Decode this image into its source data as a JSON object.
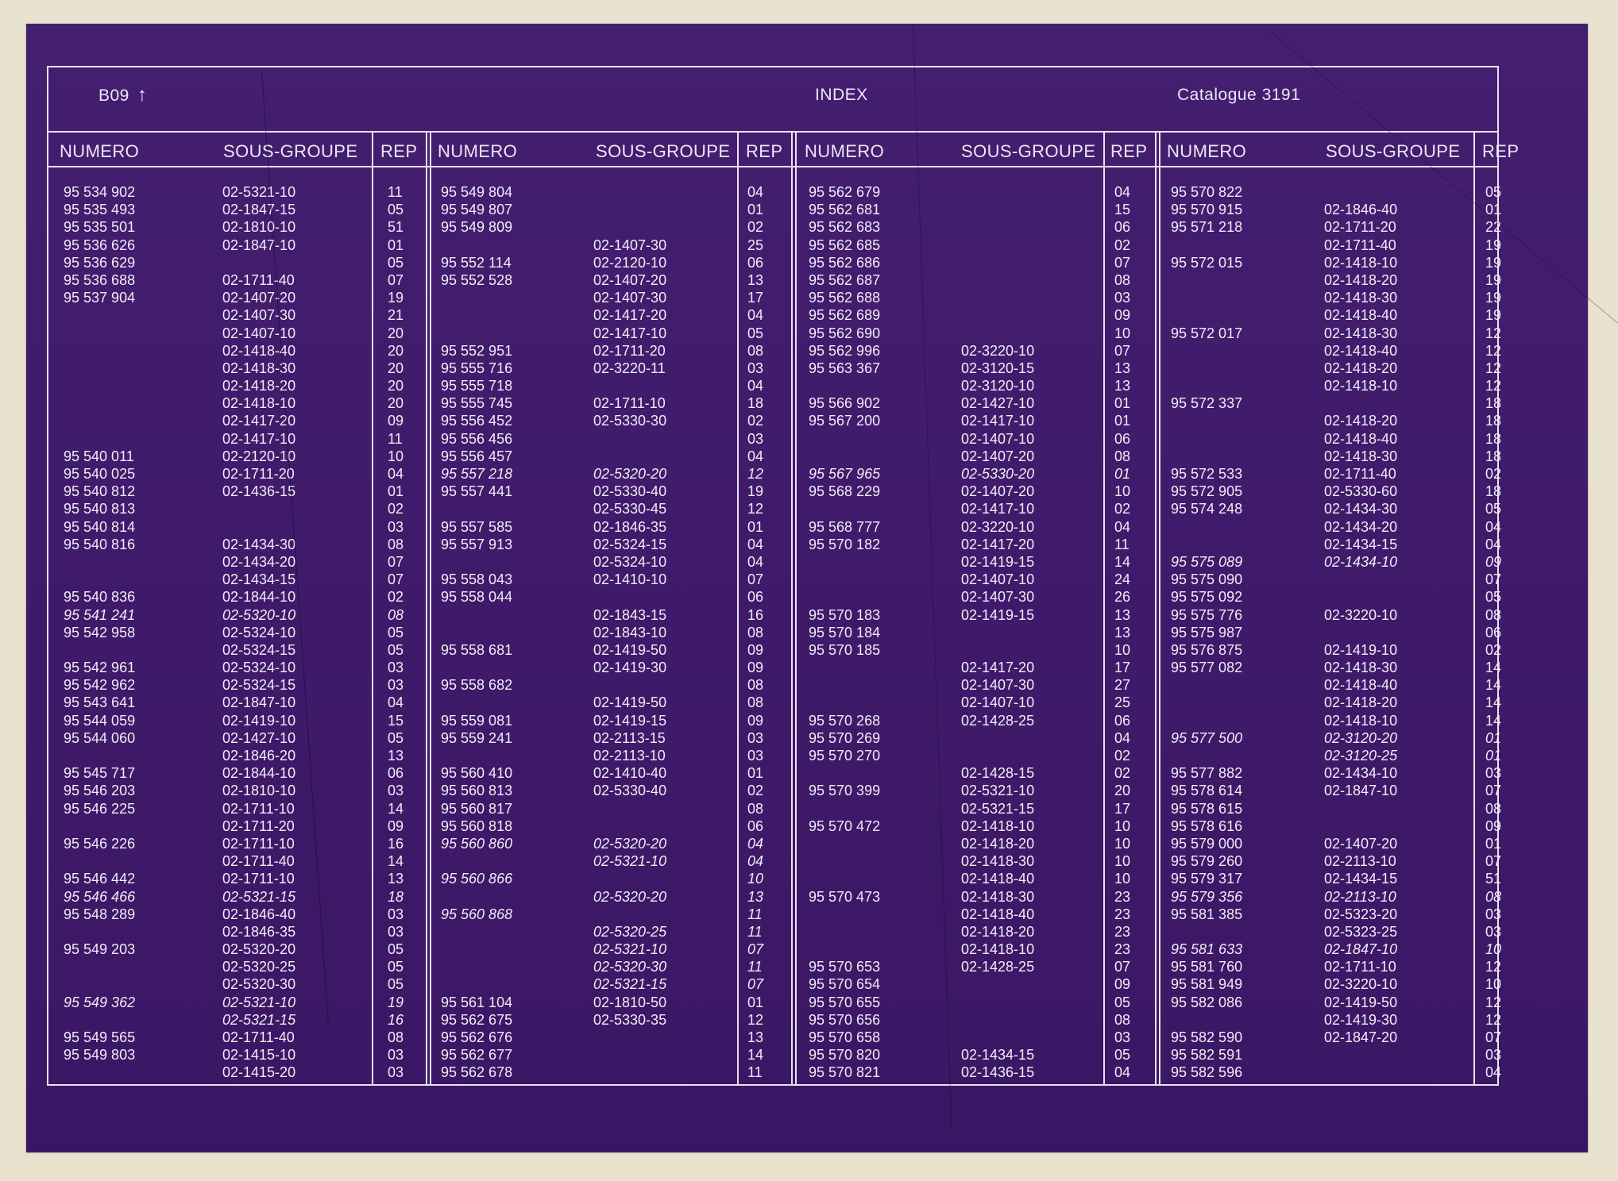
{
  "header": {
    "code": "B09",
    "arrow": "↑",
    "title": "INDEX",
    "catalogue": "Catalogue 3191"
  },
  "column_headers": {
    "numero": "NUMERO",
    "sous_groupe": "SOUS-GROUPE",
    "rep": "REP"
  },
  "colors": {
    "sheet": "#421d6d",
    "text": "#f1edf6",
    "background": "#e9e2cf"
  },
  "blocks": [
    {
      "rows": [
        [
          "95 534 902",
          "02-5321-10",
          "11",
          false
        ],
        [
          "95 535 493",
          "02-1847-15",
          "05",
          false
        ],
        [
          "95 535 501",
          "02-1810-10",
          "51",
          false
        ],
        [
          "95 536 626",
          "02-1847-10",
          "01",
          false
        ],
        [
          "95 536 629",
          "",
          "05",
          false
        ],
        [
          "95 536 688",
          "02-1711-40",
          "07",
          false
        ],
        [
          "95 537 904",
          "02-1407-20",
          "19",
          false
        ],
        [
          "",
          "02-1407-30",
          "21",
          false
        ],
        [
          "",
          "02-1407-10",
          "20",
          false
        ],
        [
          "",
          "02-1418-40",
          "20",
          false
        ],
        [
          "",
          "02-1418-30",
          "20",
          false
        ],
        [
          "",
          "02-1418-20",
          "20",
          false
        ],
        [
          "",
          "02-1418-10",
          "20",
          false
        ],
        [
          "",
          "02-1417-20",
          "09",
          false
        ],
        [
          "",
          "02-1417-10",
          "11",
          false
        ],
        [
          "95 540 011",
          "02-2120-10",
          "10",
          false
        ],
        [
          "95 540 025",
          "02-1711-20",
          "04",
          false
        ],
        [
          "95 540 812",
          "02-1436-15",
          "01",
          false
        ],
        [
          "95 540 813",
          "",
          "02",
          false
        ],
        [
          "95 540 814",
          "",
          "03",
          false
        ],
        [
          "95 540 816",
          "02-1434-30",
          "08",
          false
        ],
        [
          "",
          "02-1434-20",
          "07",
          false
        ],
        [
          "",
          "02-1434-15",
          "07",
          false
        ],
        [
          "95 540 836",
          "02-1844-10",
          "02",
          false
        ],
        [
          "95 541 241",
          "02-5320-10",
          "08",
          true
        ],
        [
          "95 542 958",
          "02-5324-10",
          "05",
          false
        ],
        [
          "",
          "02-5324-15",
          "05",
          false
        ],
        [
          "95 542 961",
          "02-5324-10",
          "03",
          false
        ],
        [
          "95 542 962",
          "02-5324-15",
          "03",
          false
        ],
        [
          "95 543 641",
          "02-1847-10",
          "04",
          false
        ],
        [
          "95 544 059",
          "02-1419-10",
          "15",
          false
        ],
        [
          "95 544 060",
          "02-1427-10",
          "05",
          false
        ],
        [
          "",
          "02-1846-20",
          "13",
          false
        ],
        [
          "95 545 717",
          "02-1844-10",
          "06",
          false
        ],
        [
          "95 546 203",
          "02-1810-10",
          "03",
          false
        ],
        [
          "95 546 225",
          "02-1711-10",
          "14",
          false
        ],
        [
          "",
          "02-1711-20",
          "09",
          false
        ],
        [
          "95 546 226",
          "02-1711-10",
          "16",
          false
        ],
        [
          "",
          "02-1711-40",
          "14",
          false
        ],
        [
          "95 546 442",
          "02-1711-10",
          "13",
          false
        ],
        [
          "95 546 466",
          "02-5321-15",
          "18",
          true
        ],
        [
          "95 548 289",
          "02-1846-40",
          "03",
          false
        ],
        [
          "",
          "02-1846-35",
          "03",
          false
        ],
        [
          "95 549 203",
          "02-5320-20",
          "05",
          false
        ],
        [
          "",
          "02-5320-25",
          "05",
          false
        ],
        [
          "",
          "02-5320-30",
          "05",
          false
        ],
        [
          "95 549 362",
          "02-5321-10",
          "19",
          true
        ],
        [
          "",
          "02-5321-15",
          "16",
          true
        ],
        [
          "95 549 565",
          "02-1711-40",
          "08",
          false
        ],
        [
          "95 549 803",
          "02-1415-10",
          "03",
          false
        ],
        [
          "",
          "02-1415-20",
          "03",
          false
        ]
      ]
    },
    {
      "rows": [
        [
          "95 549 804",
          "",
          "04",
          false
        ],
        [
          "95 549 807",
          "",
          "01",
          false
        ],
        [
          "95 549 809",
          "",
          "02",
          false
        ],
        [
          "",
          "02-1407-30",
          "25",
          false
        ],
        [
          "95 552 114",
          "02-2120-10",
          "06",
          false
        ],
        [
          "95 552 528",
          "02-1407-20",
          "13",
          false
        ],
        [
          "",
          "02-1407-30",
          "17",
          false
        ],
        [
          "",
          "02-1417-20",
          "04",
          false
        ],
        [
          "",
          "02-1417-10",
          "05",
          false
        ],
        [
          "95 552 951",
          "02-1711-20",
          "08",
          false
        ],
        [
          "95 555 716",
          "02-3220-11",
          "03",
          false
        ],
        [
          "95 555 718",
          "",
          "04",
          false
        ],
        [
          "95 555 745",
          "02-1711-10",
          "18",
          false
        ],
        [
          "95 556 452",
          "02-5330-30",
          "02",
          false
        ],
        [
          "95 556 456",
          "",
          "03",
          false
        ],
        [
          "95 556 457",
          "",
          "04",
          false
        ],
        [
          "95 557 218",
          "02-5320-20",
          "12",
          true
        ],
        [
          "95 557 441",
          "02-5330-40",
          "19",
          false
        ],
        [
          "",
          "02-5330-45",
          "12",
          false
        ],
        [
          "95 557 585",
          "02-1846-35",
          "01",
          false
        ],
        [
          "95 557 913",
          "02-5324-15",
          "04",
          false
        ],
        [
          "",
          "02-5324-10",
          "04",
          false
        ],
        [
          "95 558 043",
          "02-1410-10",
          "07",
          false
        ],
        [
          "95 558 044",
          "",
          "06",
          false
        ],
        [
          "",
          "02-1843-15",
          "16",
          false
        ],
        [
          "",
          "02-1843-10",
          "08",
          false
        ],
        [
          "95 558 681",
          "02-1419-50",
          "09",
          false
        ],
        [
          "",
          "02-1419-30",
          "09",
          false
        ],
        [
          "95 558 682",
          "",
          "08",
          false
        ],
        [
          "",
          "02-1419-50",
          "08",
          false
        ],
        [
          "95 559 081",
          "02-1419-15",
          "09",
          false
        ],
        [
          "95 559 241",
          "02-2113-15",
          "03",
          false
        ],
        [
          "",
          "02-2113-10",
          "03",
          false
        ],
        [
          "95 560 410",
          "02-1410-40",
          "01",
          false
        ],
        [
          "95 560 813",
          "02-5330-40",
          "02",
          false
        ],
        [
          "95 560 817",
          "",
          "08",
          false
        ],
        [
          "95 560 818",
          "",
          "06",
          false
        ],
        [
          "95 560 860",
          "02-5320-20",
          "04",
          true
        ],
        [
          "",
          "02-5321-10",
          "04",
          true
        ],
        [
          "95 560 866",
          "",
          "10",
          true
        ],
        [
          "",
          "02-5320-20",
          "13",
          true
        ],
        [
          "95 560 868",
          "",
          "11",
          true
        ],
        [
          "",
          "02-5320-25",
          "11",
          true
        ],
        [
          "",
          "02-5321-10",
          "07",
          true
        ],
        [
          "",
          "02-5320-30",
          "11",
          true
        ],
        [
          "",
          "02-5321-15",
          "07",
          true
        ],
        [
          "95 561 104",
          "02-1810-50",
          "01",
          false
        ],
        [
          "95 562 675",
          "02-5330-35",
          "12",
          false
        ],
        [
          "95 562 676",
          "",
          "13",
          false
        ],
        [
          "95 562 677",
          "",
          "14",
          false
        ],
        [
          "95 562 678",
          "",
          "11",
          false
        ]
      ]
    },
    {
      "rows": [
        [
          "95 562 679",
          "",
          "04",
          false
        ],
        [
          "95 562 681",
          "",
          "15",
          false
        ],
        [
          "95 562 683",
          "",
          "06",
          false
        ],
        [
          "95 562 685",
          "",
          "02",
          false
        ],
        [
          "95 562 686",
          "",
          "07",
          false
        ],
        [
          "95 562 687",
          "",
          "08",
          false
        ],
        [
          "95 562 688",
          "",
          "03",
          false
        ],
        [
          "95 562 689",
          "",
          "09",
          false
        ],
        [
          "95 562 690",
          "",
          "10",
          false
        ],
        [
          "95 562 996",
          "02-3220-10",
          "07",
          false
        ],
        [
          "95 563 367",
          "02-3120-15",
          "13",
          false
        ],
        [
          "",
          "02-3120-10",
          "13",
          false
        ],
        [
          "95 566 902",
          "02-1427-10",
          "01",
          false
        ],
        [
          "95 567 200",
          "02-1417-10",
          "01",
          false
        ],
        [
          "",
          "02-1407-10",
          "06",
          false
        ],
        [
          "",
          "02-1407-20",
          "08",
          false
        ],
        [
          "95 567 965",
          "02-5330-20",
          "01",
          true
        ],
        [
          "95 568 229",
          "02-1407-20",
          "10",
          false
        ],
        [
          "",
          "02-1417-10",
          "02",
          false
        ],
        [
          "95 568 777",
          "02-3220-10",
          "04",
          false
        ],
        [
          "95 570 182",
          "02-1417-20",
          "11",
          false
        ],
        [
          "",
          "02-1419-15",
          "14",
          false
        ],
        [
          "",
          "02-1407-10",
          "24",
          false
        ],
        [
          "",
          "02-1407-30",
          "26",
          false
        ],
        [
          "95 570 183",
          "02-1419-15",
          "13",
          false
        ],
        [
          "95 570 184",
          "",
          "13",
          false
        ],
        [
          "95 570 185",
          "",
          "10",
          false
        ],
        [
          "",
          "02-1417-20",
          "17",
          false
        ],
        [
          "",
          "02-1407-30",
          "27",
          false
        ],
        [
          "",
          "02-1407-10",
          "25",
          false
        ],
        [
          "95 570 268",
          "02-1428-25",
          "06",
          false
        ],
        [
          "95 570 269",
          "",
          "04",
          false
        ],
        [
          "95 570 270",
          "",
          "02",
          false
        ],
        [
          "",
          "02-1428-15",
          "02",
          false
        ],
        [
          "95 570 399",
          "02-5321-10",
          "20",
          false
        ],
        [
          "",
          "02-5321-15",
          "17",
          false
        ],
        [
          "95 570 472",
          "02-1418-10",
          "10",
          false
        ],
        [
          "",
          "02-1418-20",
          "10",
          false
        ],
        [
          "",
          "02-1418-30",
          "10",
          false
        ],
        [
          "",
          "02-1418-40",
          "10",
          false
        ],
        [
          "95 570 473",
          "02-1418-30",
          "23",
          false
        ],
        [
          "",
          "02-1418-40",
          "23",
          false
        ],
        [
          "",
          "02-1418-20",
          "23",
          false
        ],
        [
          "",
          "02-1418-10",
          "23",
          false
        ],
        [
          "95 570 653",
          "02-1428-25",
          "07",
          false
        ],
        [
          "95 570 654",
          "",
          "09",
          false
        ],
        [
          "95 570 655",
          "",
          "05",
          false
        ],
        [
          "95 570 656",
          "",
          "08",
          false
        ],
        [
          "95 570 658",
          "",
          "03",
          false
        ],
        [
          "95 570 820",
          "02-1434-15",
          "05",
          false
        ],
        [
          "95 570 821",
          "02-1436-15",
          "04",
          false
        ]
      ]
    },
    {
      "rows": [
        [
          "95 570 822",
          "",
          "05",
          false
        ],
        [
          "95 570 915",
          "02-1846-40",
          "01",
          false
        ],
        [
          "95 571 218",
          "02-1711-20",
          "22",
          false
        ],
        [
          "",
          "02-1711-40",
          "19",
          false
        ],
        [
          "95 572 015",
          "02-1418-10",
          "19",
          false
        ],
        [
          "",
          "02-1418-20",
          "19",
          false
        ],
        [
          "",
          "02-1418-30",
          "19",
          false
        ],
        [
          "",
          "02-1418-40",
          "19",
          false
        ],
        [
          "95 572 017",
          "02-1418-30",
          "12",
          false
        ],
        [
          "",
          "02-1418-40",
          "12",
          false
        ],
        [
          "",
          "02-1418-20",
          "12",
          false
        ],
        [
          "",
          "02-1418-10",
          "12",
          false
        ],
        [
          "95 572 337",
          "",
          "18",
          false
        ],
        [
          "",
          "02-1418-20",
          "18",
          false
        ],
        [
          "",
          "02-1418-40",
          "18",
          false
        ],
        [
          "",
          "02-1418-30",
          "18",
          false
        ],
        [
          "95 572 533",
          "02-1711-40",
          "02",
          false
        ],
        [
          "95 572 905",
          "02-5330-60",
          "18",
          false
        ],
        [
          "95 574 248",
          "02-1434-30",
          "05",
          false
        ],
        [
          "",
          "02-1434-20",
          "04",
          false
        ],
        [
          "",
          "02-1434-15",
          "04",
          false
        ],
        [
          "95 575 089",
          "02-1434-10",
          "09",
          true
        ],
        [
          "95 575 090",
          "",
          "07",
          false
        ],
        [
          "95 575 092",
          "",
          "05",
          false
        ],
        [
          "95 575 776",
          "02-3220-10",
          "08",
          false
        ],
        [
          "95 575 987",
          "",
          "06",
          false
        ],
        [
          "95 576 875",
          "02-1419-10",
          "02",
          false
        ],
        [
          "95 577 082",
          "02-1418-30",
          "14",
          false
        ],
        [
          "",
          "02-1418-40",
          "14",
          false
        ],
        [
          "",
          "02-1418-20",
          "14",
          false
        ],
        [
          "",
          "02-1418-10",
          "14",
          false
        ],
        [
          "95 577 500",
          "02-3120-20",
          "01",
          true
        ],
        [
          "",
          "02-3120-25",
          "01",
          true
        ],
        [
          "95 577 882",
          "02-1434-10",
          "03",
          false
        ],
        [
          "95 578 614",
          "02-1847-10",
          "07",
          false
        ],
        [
          "95 578 615",
          "",
          "08",
          false
        ],
        [
          "95 578 616",
          "",
          "09",
          false
        ],
        [
          "95 579 000",
          "02-1407-20",
          "01",
          false
        ],
        [
          "95 579 260",
          "02-2113-10",
          "07",
          false
        ],
        [
          "95 579 317",
          "02-1434-15",
          "51",
          false
        ],
        [
          "95 579 356",
          "02-2113-10",
          "08",
          true
        ],
        [
          "95 581 385",
          "02-5323-20",
          "03",
          false
        ],
        [
          "",
          "02-5323-25",
          "03",
          false
        ],
        [
          "95 581 633",
          "02-1847-10",
          "10",
          true
        ],
        [
          "95 581 760",
          "02-1711-10",
          "12",
          false
        ],
        [
          "95 581 949",
          "02-3220-10",
          "10",
          false
        ],
        [
          "95 582 086",
          "02-1419-50",
          "12",
          false
        ],
        [
          "",
          "02-1419-30",
          "12",
          false
        ],
        [
          "95 582 590",
          "02-1847-20",
          "07",
          false
        ],
        [
          "95 582 591",
          "",
          "03",
          false
        ],
        [
          "95 582 596",
          "",
          "04",
          false
        ]
      ]
    }
  ]
}
